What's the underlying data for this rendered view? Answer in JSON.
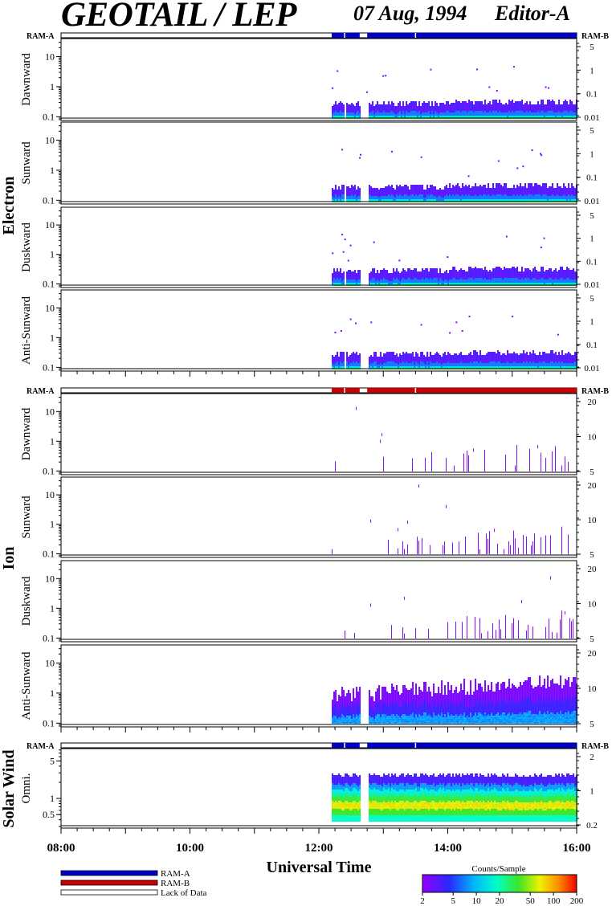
{
  "header": {
    "title": "GEOTAIL / LEP",
    "date": "07 Aug, 1994",
    "editor": "Editor-A"
  },
  "chart_data": {
    "type": "heatmap",
    "xlabel": "Universal Time",
    "x_range": [
      "08:00",
      "16:00"
    ],
    "x_ticks": [
      "08:00",
      "10:00",
      "12:00",
      "14:00",
      "16:00"
    ],
    "data_start": "12:12",
    "data_gap": [
      "12:38",
      "12:45"
    ],
    "groups": [
      {
        "name": "Electron",
        "ram_left": "RAM-A",
        "ram_right": "RAM-B",
        "ram_bar_color": "#0000cc",
        "panels": [
          {
            "name": "Dawnward",
            "y_ticks": [
              "0.1",
              "1",
              "10"
            ],
            "right_ticks": [
              "5",
              "1",
              "0.1",
              "0.01"
            ]
          },
          {
            "name": "Sunward",
            "y_ticks": [
              "0.1",
              "1",
              "10"
            ],
            "right_ticks": [
              "5",
              "1",
              "0.1",
              "0.01"
            ]
          },
          {
            "name": "Duskward",
            "y_ticks": [
              "0.1",
              "1",
              "10"
            ],
            "right_ticks": [
              "5",
              "1",
              "0.1",
              "0.01"
            ]
          },
          {
            "name": "Anti-Sunward",
            "y_ticks": [
              "0.1",
              "1",
              "10"
            ],
            "right_ticks": [
              "5",
              "1",
              "0.1",
              "0.01"
            ]
          }
        ]
      },
      {
        "name": "Ion",
        "ram_left": "RAM-A",
        "ram_right": "RAM-B",
        "ram_bar_color": "#cc0000",
        "panels": [
          {
            "name": "Dawnward",
            "y_ticks": [
              "0.1",
              "1",
              "10"
            ],
            "right_ticks": [
              "20",
              "10",
              "5"
            ]
          },
          {
            "name": "Sunward",
            "y_ticks": [
              "0.1",
              "1",
              "10"
            ],
            "right_ticks": [
              "20",
              "10",
              "5"
            ]
          },
          {
            "name": "Duskward",
            "y_ticks": [
              "0.1",
              "1",
              "10"
            ],
            "right_ticks": [
              "20",
              "10",
              "5"
            ]
          },
          {
            "name": "Anti-Sunward",
            "y_ticks": [
              "0.1",
              "1",
              "10"
            ],
            "right_ticks": [
              "20",
              "10",
              "5"
            ]
          }
        ]
      },
      {
        "name": "Solar Wind",
        "ram_left": "RAM-A",
        "ram_right": "RAM-B",
        "ram_bar_color": "#0000cc",
        "panels": [
          {
            "name": "Omni.",
            "y_ticks": [
              "0.5",
              "1",
              "5"
            ],
            "right_ticks": [
              "2",
              "1",
              "0.2"
            ]
          }
        ]
      }
    ],
    "legend": {
      "items": [
        {
          "label": "RAM-A",
          "color": "#0000cc"
        },
        {
          "label": "RAM-B",
          "color": "#cc0000"
        },
        {
          "label": "Lack of Data",
          "color": "#ffffff"
        }
      ]
    },
    "colorbar": {
      "title": "Counts/Sample",
      "ticks": [
        "2",
        "5",
        "10",
        "20",
        "50",
        "100",
        "200"
      ],
      "scale": "log",
      "range": [
        2,
        200
      ]
    }
  }
}
